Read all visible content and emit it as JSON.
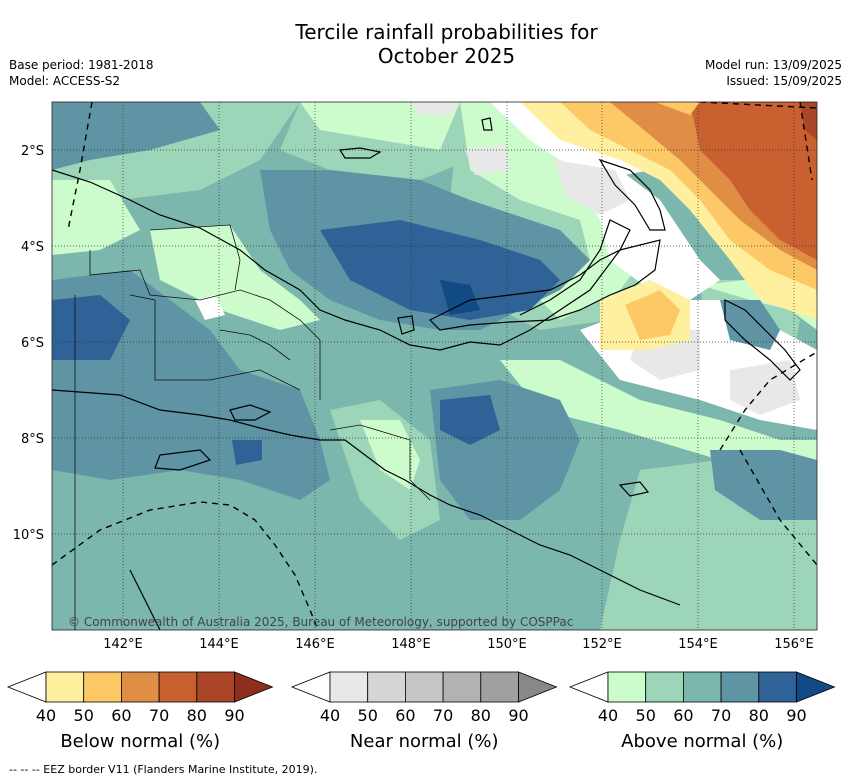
{
  "title_line1": "Tercile rainfall probabilities for",
  "title_line2": "October 2025",
  "base_period": "Base period: 1981-2018",
  "model": "Model: ACCESS-S2",
  "model_run": "Model run: 13/09/2025",
  "issued": "Issued: 15/09/2025",
  "lat_labels": [
    "2°S",
    "4°S",
    "6°S",
    "8°S",
    "10°S"
  ],
  "lon_labels": [
    "142°E",
    "144°E",
    "146°E",
    "148°E",
    "150°E",
    "152°E",
    "154°E",
    "156°E"
  ],
  "copyright": "© Commonwealth of Australia 2025, Bureau of Meteorology, supported by COSPPac",
  "legends": [
    {
      "title": "Below normal (%)",
      "ticks": [
        "40",
        "50",
        "60",
        "70",
        "80",
        "90"
      ],
      "colors": [
        "#fff0a0",
        "#fdc966",
        "#e08e45",
        "#c9602f",
        "#ab4527",
        "#8f2e1c"
      ]
    },
    {
      "title": "Near normal (%)",
      "ticks": [
        "40",
        "50",
        "60",
        "70",
        "80",
        "90"
      ],
      "colors": [
        "#e8e8e8",
        "#d6d6d6",
        "#c6c6c6",
        "#b2b2b2",
        "#a0a0a0",
        "#888888"
      ]
    },
    {
      "title": "Above normal (%)",
      "ticks": [
        "40",
        "50",
        "60",
        "70",
        "80",
        "90"
      ],
      "colors": [
        "#ccfccc",
        "#9dd5b9",
        "#7cb7ad",
        "#5e94a4",
        "#2f6297",
        "#124a86"
      ]
    }
  ],
  "footer": "--  --  -- EEZ border V11 (Flanders Marine Institute, 2019)."
}
